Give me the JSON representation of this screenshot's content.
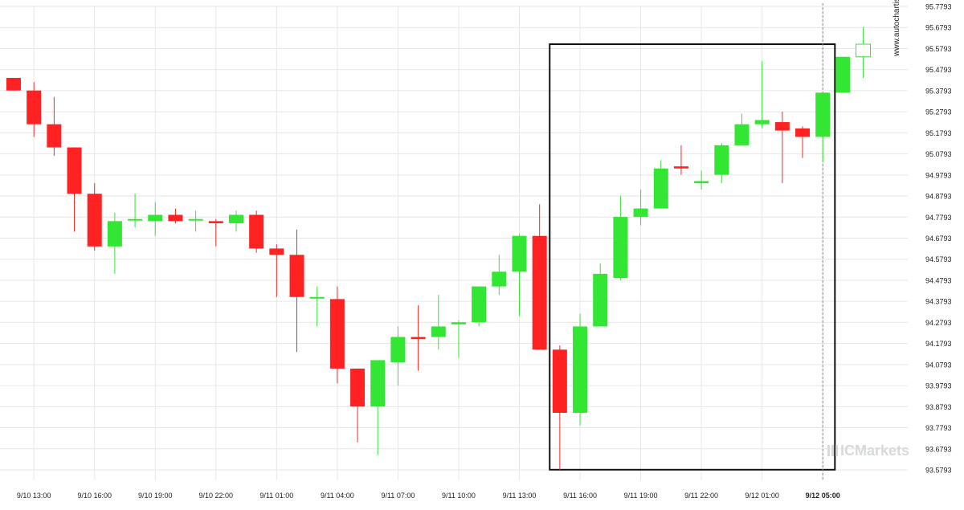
{
  "chart_data": {
    "type": "candlestick",
    "y_ticks": [
      "95.7793",
      "95.6793",
      "95.5793",
      "95.4793",
      "95.3793",
      "95.2793",
      "95.1793",
      "95.0793",
      "94.9793",
      "94.8793",
      "94.7793",
      "94.6793",
      "94.5793",
      "94.4793",
      "94.3793",
      "94.2793",
      "94.1793",
      "94.0793",
      "93.9793",
      "93.8793",
      "93.7793",
      "93.6793",
      "93.5793"
    ],
    "ylim": [
      93.5793,
      95.7793
    ],
    "x_ticks": [
      {
        "index": 1,
        "label": "9/10 13:00"
      },
      {
        "index": 4,
        "label": "9/10 16:00"
      },
      {
        "index": 7,
        "label": "9/10 19:00"
      },
      {
        "index": 10,
        "label": "9/10 22:00"
      },
      {
        "index": 13,
        "label": "9/11 01:00"
      },
      {
        "index": 16,
        "label": "9/11 04:00"
      },
      {
        "index": 19,
        "label": "9/11 07:00"
      },
      {
        "index": 22,
        "label": "9/11 10:00"
      },
      {
        "index": 25,
        "label": "9/11 13:00"
      },
      {
        "index": 28,
        "label": "9/11 16:00"
      },
      {
        "index": 31,
        "label": "9/11 19:00"
      },
      {
        "index": 34,
        "label": "9/11 22:00"
      },
      {
        "index": 37,
        "label": "9/12 01:00"
      },
      {
        "index": 40,
        "label": "9/12 05:00",
        "bold": true
      }
    ],
    "candles": [
      {
        "o": 95.44,
        "h": 95.44,
        "l": 95.38,
        "c": 95.38
      },
      {
        "o": 95.38,
        "h": 95.42,
        "l": 95.16,
        "c": 95.22
      },
      {
        "o": 95.22,
        "h": 95.35,
        "l": 95.07,
        "c": 95.11
      },
      {
        "o": 95.11,
        "h": 95.11,
        "l": 94.71,
        "c": 94.89
      },
      {
        "o": 94.89,
        "h": 94.94,
        "l": 94.62,
        "c": 94.64
      },
      {
        "o": 94.64,
        "h": 94.8,
        "l": 94.51,
        "c": 94.76
      },
      {
        "o": 94.77,
        "h": 94.89,
        "l": 94.73,
        "c": 94.77
      },
      {
        "o": 94.76,
        "h": 94.85,
        "l": 94.69,
        "c": 94.79
      },
      {
        "o": 94.79,
        "h": 94.82,
        "l": 94.75,
        "c": 94.76
      },
      {
        "o": 94.77,
        "h": 94.81,
        "l": 94.71,
        "c": 94.77
      },
      {
        "o": 94.76,
        "h": 94.77,
        "l": 94.64,
        "c": 94.75
      },
      {
        "o": 94.75,
        "h": 94.81,
        "l": 94.71,
        "c": 94.79
      },
      {
        "o": 94.79,
        "h": 94.81,
        "l": 94.61,
        "c": 94.63
      },
      {
        "o": 94.63,
        "h": 94.65,
        "l": 94.4,
        "c": 94.6
      },
      {
        "o": 94.6,
        "h": 94.72,
        "l": 94.14,
        "c": 94.4
      },
      {
        "o": 94.4,
        "h": 94.45,
        "l": 94.26,
        "c": 94.4
      },
      {
        "o": 94.39,
        "h": 94.45,
        "l": 93.99,
        "c": 94.06
      },
      {
        "o": 94.06,
        "h": 94.06,
        "l": 93.71,
        "c": 93.88
      },
      {
        "o": 93.88,
        "h": 94.1,
        "l": 93.65,
        "c": 94.1
      },
      {
        "o": 94.09,
        "h": 94.26,
        "l": 93.98,
        "c": 94.21
      },
      {
        "o": 94.21,
        "h": 94.36,
        "l": 94.05,
        "c": 94.2
      },
      {
        "o": 94.21,
        "h": 94.41,
        "l": 94.15,
        "c": 94.26
      },
      {
        "o": 94.27,
        "h": 94.29,
        "l": 94.11,
        "c": 94.28
      },
      {
        "o": 94.28,
        "h": 94.45,
        "l": 94.26,
        "c": 94.45
      },
      {
        "o": 94.45,
        "h": 94.6,
        "l": 94.41,
        "c": 94.52
      },
      {
        "o": 94.52,
        "h": 94.7,
        "l": 94.31,
        "c": 94.69
      },
      {
        "o": 94.69,
        "h": 94.84,
        "l": 94.15,
        "c": 94.15
      },
      {
        "o": 94.15,
        "h": 94.17,
        "l": 93.58,
        "c": 93.85
      },
      {
        "o": 93.85,
        "h": 94.32,
        "l": 93.79,
        "c": 94.26
      },
      {
        "o": 94.26,
        "h": 94.56,
        "l": 94.26,
        "c": 94.51
      },
      {
        "o": 94.49,
        "h": 94.88,
        "l": 94.48,
        "c": 94.78
      },
      {
        "o": 94.78,
        "h": 94.91,
        "l": 94.74,
        "c": 94.82
      },
      {
        "o": 94.82,
        "h": 95.05,
        "l": 94.82,
        "c": 95.01
      },
      {
        "o": 95.02,
        "h": 95.12,
        "l": 94.98,
        "c": 95.01
      },
      {
        "o": 94.94,
        "h": 95.0,
        "l": 94.91,
        "c": 94.95
      },
      {
        "o": 94.98,
        "h": 95.13,
        "l": 94.94,
        "c": 95.12
      },
      {
        "o": 95.12,
        "h": 95.27,
        "l": 95.12,
        "c": 95.22
      },
      {
        "o": 95.22,
        "h": 95.52,
        "l": 95.2,
        "c": 95.24
      },
      {
        "o": 95.23,
        "h": 95.28,
        "l": 94.94,
        "c": 95.19
      },
      {
        "o": 95.2,
        "h": 95.21,
        "l": 95.06,
        "c": 95.16
      },
      {
        "o": 95.16,
        "h": 95.37,
        "l": 95.04,
        "c": 95.37
      },
      {
        "o": 95.37,
        "h": 95.54,
        "l": 95.37,
        "c": 95.54
      },
      {
        "o": 95.54,
        "h": 95.68,
        "l": 95.44,
        "c": 95.6
      }
    ],
    "colors": {
      "up": "#33e633",
      "down": "#ff2222",
      "grid": "#e6e6e6"
    },
    "highlight_box": {
      "start_index": 26.5,
      "end_index": 40.6,
      "top": 95.6,
      "bottom": 93.58
    },
    "vertical_marker_index": 40
  },
  "watermark": {
    "brand": "ICMarkets",
    "site": "www.autochartist.com"
  }
}
